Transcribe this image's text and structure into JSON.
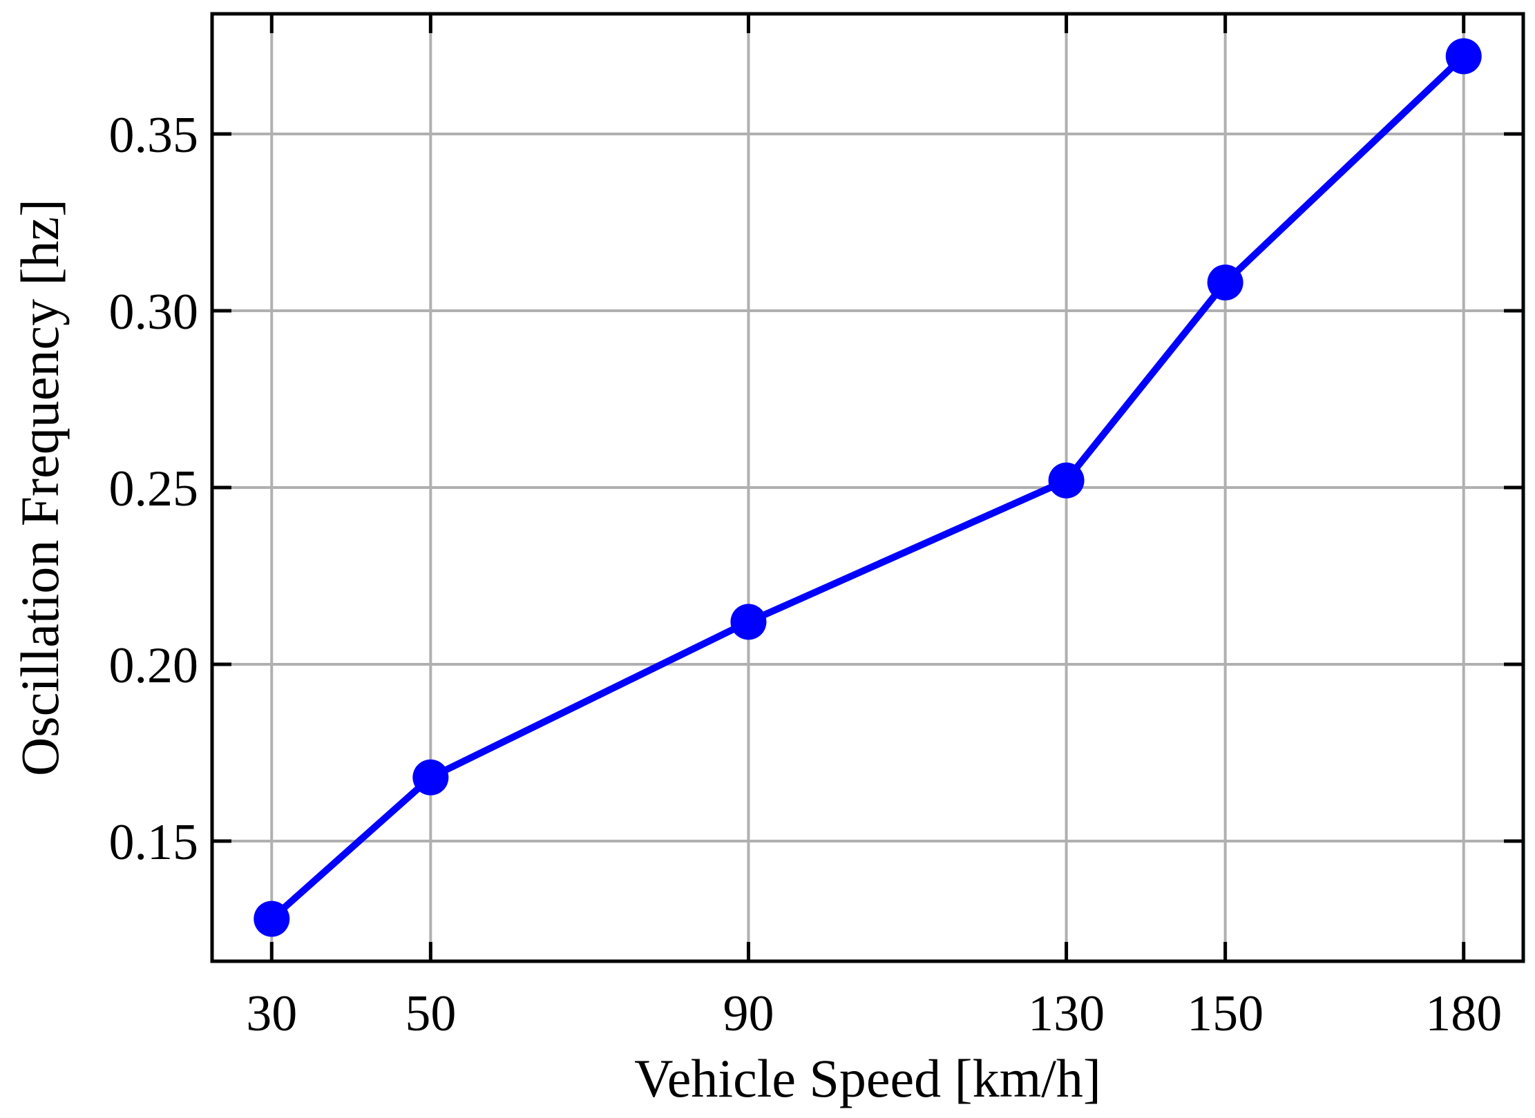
{
  "chart_data": {
    "type": "line",
    "x": [
      30,
      50,
      90,
      130,
      150,
      180
    ],
    "series": [
      {
        "values": [
          0.128,
          0.168,
          0.212,
          0.252,
          0.308,
          0.372
        ],
        "color": "#0000ff",
        "marker": "circle"
      }
    ],
    "xlabel": "Vehicle Speed [km/h]",
    "ylabel": "Oscillation Frequency [hz]",
    "xlim": [
      22.5,
      187.5
    ],
    "ylim": [
      0.116,
      0.384
    ],
    "x_ticks": [
      30,
      50,
      90,
      130,
      150,
      180
    ],
    "x_tick_labels": [
      "30",
      "50",
      "90",
      "130",
      "150",
      "180"
    ],
    "y_ticks": [
      0.15,
      0.2,
      0.25,
      0.3,
      0.35
    ],
    "y_tick_labels": [
      "0.15",
      "0.20",
      "0.25",
      "0.30",
      "0.35"
    ],
    "grid": true,
    "ticks_on_all_sides": true,
    "ticks_direction": "in"
  }
}
